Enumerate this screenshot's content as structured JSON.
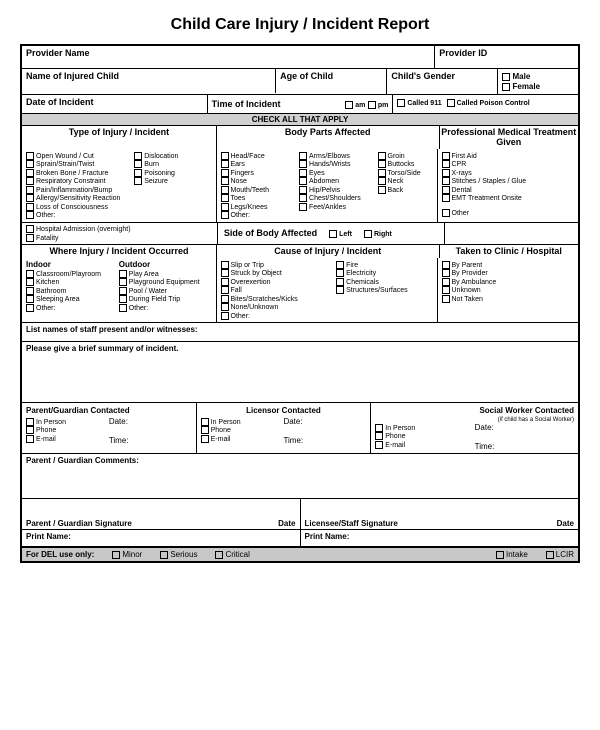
{
  "title": "Child Care Injury / Incident Report",
  "r1": {
    "provider_name": "Provider Name",
    "provider_id": "Provider ID"
  },
  "r2": {
    "child_name": "Name of Injured Child",
    "age": "Age of Child",
    "gender": "Child's Gender",
    "male": "Male",
    "female": "Female"
  },
  "r3": {
    "date": "Date of Incident",
    "time": "Time of Incident",
    "am": "am",
    "pm": "pm",
    "c911": "Called 911",
    "cpc": "Called Poison Control"
  },
  "check_all": "CHECK ALL THAT APPLY",
  "type_injury": {
    "hdr": "Type of Injury / Incident",
    "c1": [
      "Open Wound / Cut",
      "Sprain/Strain/Twist",
      "Broken Bone / Fracture",
      "Respiratory Constraint",
      "Pain/Inflammation/Bump",
      "Allergy/Sensitivity Reaction",
      "Loss of Consciousness",
      "Other:"
    ],
    "c2": [
      "Dislocation",
      "Burn",
      "Poisoning",
      "Seizure"
    ]
  },
  "body_parts": {
    "hdr": "Body Parts Affected",
    "c1": [
      "Head/Face",
      "Ears",
      "Fingers",
      "Nose",
      "Mouth/Teeth",
      "Toes",
      "Legs/Knees",
      "Other:"
    ],
    "c2": [
      "Arms/Elbows",
      "Hands/Wrists",
      "Eyes",
      "Abdomen",
      "Hip/Pelvis",
      "Chest/Shoulders",
      "Feet/Ankles"
    ],
    "c3": [
      "Groin",
      "Buttocks",
      "Torso/Side",
      "Neck",
      "Back"
    ]
  },
  "treatment": {
    "hdr": "Professional Medical Treatment Given",
    "items": [
      "First Aid",
      "CPR",
      "X-rays",
      "Stitches / Staples / Glue",
      "Dental",
      "EMT Treatment Onsite"
    ],
    "other": "Other"
  },
  "hosp": {
    "a": "Hospital Admission (overnight)",
    "b": "Fatality"
  },
  "side": {
    "hdr": "Side of Body Affected",
    "left": "Left",
    "right": "Right"
  },
  "where": {
    "hdr": "Where Injury / Incident Occurred",
    "indoor_lbl": "Indoor",
    "outdoor_lbl": "Outdoor",
    "indoor": [
      "Classroom/Playroom",
      "Kitchen",
      "Bathroom",
      "Sleeping Area",
      "Other:"
    ],
    "outdoor": [
      "Play Area",
      "Playground Equipment",
      "Pool / Water",
      "During Field Trip",
      "Other:"
    ]
  },
  "cause": {
    "hdr": "Cause of Injury / Incident",
    "c1": [
      "Slip or Trip",
      "Struck by Object",
      "Overexertion",
      "Fall",
      "Bites/Scratches/Kicks",
      "None/Unknown",
      "Other:"
    ],
    "c2": [
      "Fire",
      "Electricity",
      "Chemicals",
      "Structures/Surfaces"
    ]
  },
  "taken": {
    "hdr": "Taken to Clinic / Hospital",
    "items": [
      "By Parent",
      "By Provider",
      "By Ambulance",
      "Unknown",
      "Not Taken"
    ]
  },
  "witnesses": "List names of staff present and/or witnesses:",
  "summary": "Please give a brief summary of incident.",
  "contacts": {
    "parent": "Parent/Guardian Contacted",
    "licensor": "Licensor Contacted",
    "social": "Social Worker Contacted",
    "social_note": "(if child has a Social Worker)",
    "in_person": "In Person",
    "phone": "Phone",
    "email": "E-mail",
    "date": "Date:",
    "time": "Time:"
  },
  "comments": "Parent / Guardian Comments:",
  "sig": {
    "parent": "Parent / Guardian Signature",
    "date": "Date",
    "staff": "Licensee/Staff  Signature",
    "print": "Print Name:"
  },
  "del": {
    "label": "For DEL use only:",
    "minor": "Minor",
    "serious": "Serious",
    "critical": "Critical",
    "intake": "Intake",
    "lcir": "LCIR"
  }
}
